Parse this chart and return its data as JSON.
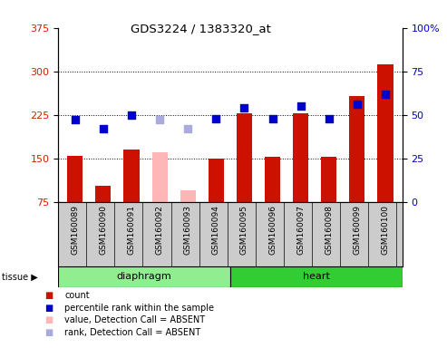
{
  "title": "GDS3224 / 1383320_at",
  "samples": [
    "GSM160089",
    "GSM160090",
    "GSM160091",
    "GSM160092",
    "GSM160093",
    "GSM160094",
    "GSM160095",
    "GSM160096",
    "GSM160097",
    "GSM160098",
    "GSM160099",
    "GSM160100"
  ],
  "absent_flags": [
    false,
    false,
    false,
    true,
    true,
    false,
    false,
    false,
    false,
    false,
    false,
    false
  ],
  "count_values": [
    155,
    103,
    165,
    160,
    95,
    150,
    228,
    153,
    228,
    153,
    258,
    312
  ],
  "percentile_values": [
    47,
    42,
    50,
    49,
    42,
    48,
    54,
    48,
    55,
    48,
    56,
    62
  ],
  "rank_absent_values": [
    null,
    null,
    null,
    47,
    42,
    null,
    null,
    null,
    null,
    null,
    null,
    null
  ],
  "groups": [
    {
      "label": "diaphragm",
      "start": 0,
      "end": 5,
      "color": "#90EE90"
    },
    {
      "label": "heart",
      "start": 6,
      "end": 11,
      "color": "#32CD32"
    }
  ],
  "left_ylim": [
    75,
    375
  ],
  "right_ylim": [
    0,
    100
  ],
  "left_yticks": [
    75,
    150,
    225,
    300,
    375
  ],
  "right_yticks": [
    0,
    25,
    50,
    75,
    100
  ],
  "left_color": "#CC2200",
  "right_color": "#0000CC",
  "bar_color_present": "#CC1100",
  "bar_color_absent": "#FFB6B6",
  "dot_color_present": "#0000CC",
  "dot_color_absent": "#AAAADD",
  "grid_levels": [
    150,
    225,
    300
  ],
  "tick_area_bg": "#CCCCCC"
}
